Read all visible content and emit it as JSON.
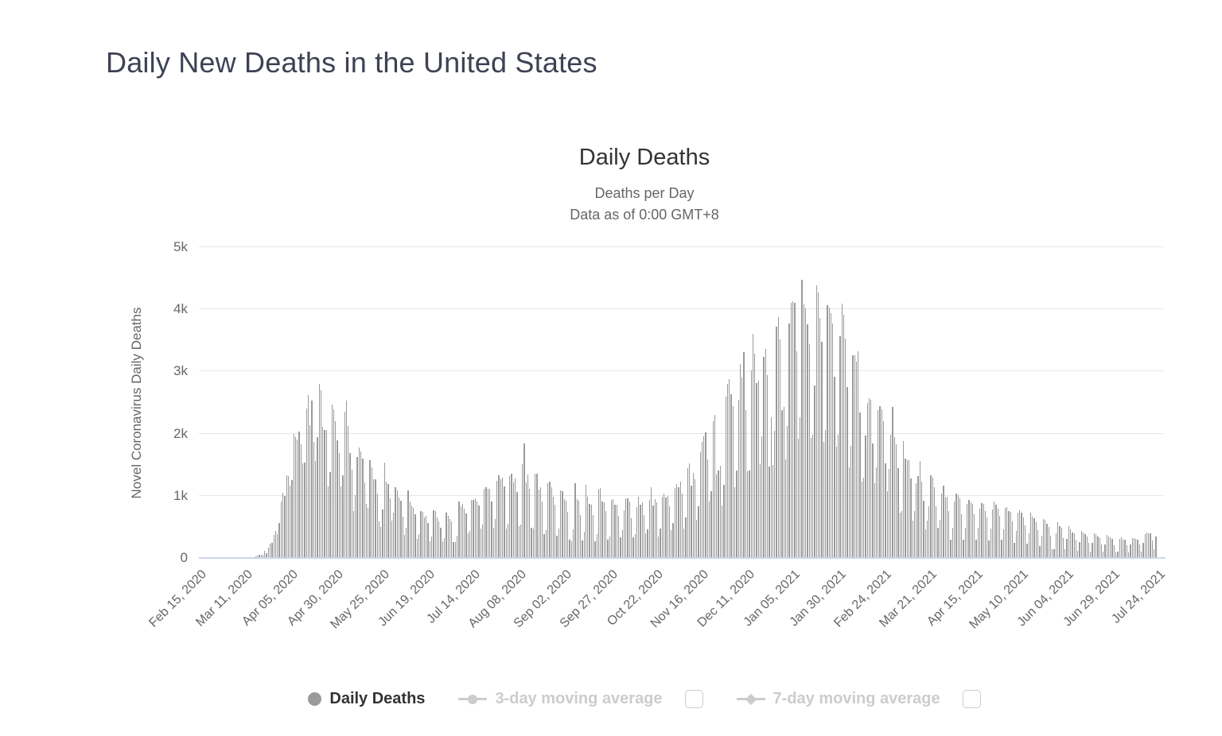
{
  "page": {
    "title": "Daily New Deaths in the United States"
  },
  "chart": {
    "title": "Daily Deaths",
    "subtitle_line1": "Deaths per Day",
    "subtitle_line2": "Data as of 0:00 GMT+8",
    "y_axis_title": "Novel Coronavirus Daily Deaths"
  },
  "legend": {
    "items": [
      {
        "label": "Daily Deaths",
        "marker": "circle",
        "active": true,
        "checkbox": false
      },
      {
        "label": "3-day moving average",
        "marker": "line-circle",
        "active": false,
        "checkbox": true,
        "checked": false
      },
      {
        "label": "7-day moving average",
        "marker": "line-diamond",
        "active": false,
        "checkbox": true,
        "checked": false
      }
    ]
  },
  "colors": {
    "bar": "#9a9a9a",
    "grid": "#e6e6e6",
    "axis_line": "#ccd6eb",
    "title_text": "#333333",
    "subtitle_text": "#666666",
    "axis_text": "#666666",
    "page_title_text": "#3d4254",
    "legend_active_text": "#333333",
    "legend_inactive_text": "#cccccc"
  },
  "chart_data": {
    "type": "bar",
    "title": "Daily Deaths",
    "ylabel": "Novel Coronavirus Daily Deaths",
    "ylim": [
      0,
      5000
    ],
    "y_tick_labels": [
      "0",
      "1k",
      "2k",
      "3k",
      "4k",
      "5k"
    ],
    "grid": true,
    "legend_position": "bottom",
    "x_start_date": "Feb 15, 2020",
    "x_tick_interval_days": 25,
    "x_tick_labels": [
      "Feb 15, 2020",
      "Mar 11, 2020",
      "Apr 05, 2020",
      "Apr 30, 2020",
      "May 25, 2020",
      "Jun 19, 2020",
      "Jul 14, 2020",
      "Aug 08, 2020",
      "Sep 02, 2020",
      "Sep 27, 2020",
      "Oct 22, 2020",
      "Nov 16, 2020",
      "Dec 11, 2020",
      "Jan 05, 2021",
      "Jan 30, 2021",
      "Feb 24, 2021",
      "Mar 21, 2021",
      "Apr 15, 2021",
      "May 10, 2021",
      "Jun 04, 2021",
      "Jun 29, 2021",
      "Jul 24, 2021"
    ],
    "series_name": "Daily Deaths",
    "values": [
      0,
      0,
      0,
      0,
      0,
      0,
      0,
      0,
      0,
      0,
      0,
      0,
      0,
      0,
      1,
      1,
      1,
      4,
      3,
      2,
      3,
      4,
      3,
      4,
      4,
      8,
      3,
      9,
      11,
      11,
      18,
      23,
      41,
      57,
      49,
      46,
      111,
      80,
      164,
      225,
      246,
      372,
      441,
      389,
      558,
      912,
      1050,
      1000,
      1325,
      1320,
      1165,
      1255,
      2000,
      1940,
      1900,
      2035,
      1830,
      1528,
      1535,
      2407,
      2621,
      2137,
      2535,
      1867,
      1561,
      1939,
      2804,
      2693,
      2107,
      2065,
      2065,
      1157,
      1384,
      2470,
      2390,
      2201,
      1897,
      1691,
      1154,
      1324,
      2350,
      2528,
      2129,
      1687,
      1422,
      750,
      1008,
      1630,
      1772,
      1715,
      1595,
      1218,
      865,
      808,
      1568,
      1461,
      1263,
      1260,
      1031,
      592,
      505,
      774,
      1535,
      1223,
      1193,
      960,
      605,
      730,
      1134,
      1083,
      974,
      921,
      670,
      373,
      491,
      1093,
      906,
      841,
      802,
      701,
      301,
      389,
      751,
      737,
      651,
      672,
      562,
      267,
      349,
      771,
      755,
      651,
      590,
      491,
      271,
      316,
      724,
      684,
      624,
      588,
      254,
      262,
      352,
      905,
      828,
      868,
      798,
      714,
      401,
      437,
      935,
      940,
      960,
      910,
      843,
      474,
      541,
      1113,
      1135,
      1108,
      1117,
      908,
      483,
      633,
      1240,
      1331,
      1267,
      1297,
      1149,
      474,
      546,
      1315,
      1362,
      1216,
      1273,
      1059,
      514,
      541,
      1504,
      1848,
      1221,
      1337,
      1113,
      482,
      477,
      1358,
      1356,
      1094,
      1135,
      912,
      390,
      444,
      1205,
      1232,
      1132,
      983,
      860,
      363,
      474,
      1083,
      1077,
      945,
      924,
      743,
      298,
      271,
      460,
      1197,
      942,
      917,
      695,
      283,
      426,
      1175,
      980,
      870,
      852,
      691,
      264,
      390,
      1101,
      1130,
      907,
      891,
      750,
      300,
      344,
      932,
      942,
      857,
      851,
      684,
      327,
      445,
      766,
      957,
      961,
      906,
      642,
      327,
      389,
      817,
      989,
      858,
      900,
      686,
      391,
      464,
      931,
      1135,
      840,
      946,
      897,
      340,
      477,
      986,
      1030,
      971,
      1004,
      827,
      445,
      565,
      1130,
      1187,
      1144,
      1223,
      1033,
      474,
      656,
      1440,
      1520,
      1165,
      1370,
      1269,
      616,
      833,
      1698,
      1869,
      1962,
      2015,
      1590,
      908,
      1072,
      2205,
      2304,
      1339,
      1404,
      1483,
      839,
      1172,
      2597,
      2804,
      2879,
      2637,
      2445,
      1138,
      1404,
      2546,
      3124,
      2902,
      3309,
      2378,
      1389,
      1404,
      3019,
      3611,
      3293,
      2814,
      2855,
      1514,
      1962,
      3239,
      3359,
      2942,
      1468,
      2263,
      1499,
      2045,
      3725,
      3880,
      3516,
      2374,
      2430,
      1585,
      2117,
      3775,
      4111,
      4134,
      4109,
      3330,
      1920,
      2263,
      4470,
      4078,
      4016,
      3764,
      3441,
      1932,
      1982,
      2776,
      4383,
      4266,
      3868,
      3482,
      1870,
      2063,
      4072,
      4031,
      3938,
      3775,
      2916,
      1791,
      1976,
      3566,
      4086,
      3912,
      3529,
      2748,
      1461,
      1806,
      3260,
      3267,
      3157,
      3326,
      2345,
      1227,
      1288,
      1965,
      2499,
      2571,
      2547,
      1836,
      1201,
      1454,
      2378,
      2443,
      2387,
      2195,
      1520,
      1077,
      1428,
      1981,
      2427,
      1947,
      1834,
      1450,
      731,
      757,
      1882,
      1593,
      1567,
      1572,
      1279,
      601,
      751,
      1199,
      1316,
      1566,
      1222,
      920,
      461,
      600,
      827,
      1329,
      1295,
      1144,
      829,
      481,
      619,
      1034,
      1169,
      968,
      990,
      757,
      298,
      486,
      906,
      1038,
      1012,
      953,
      703,
      290,
      481,
      868,
      935,
      899,
      871,
      702,
      300,
      489,
      797,
      883,
      871,
      760,
      647,
      287,
      472,
      778,
      904,
      852,
      793,
      677,
      296,
      461,
      810,
      820,
      761,
      745,
      593,
      246,
      430,
      734,
      769,
      723,
      654,
      529,
      226,
      397,
      723,
      664,
      634,
      576,
      447,
      188,
      358,
      626,
      615,
      550,
      505,
      363,
      147,
      142,
      401,
      579,
      518,
      487,
      323,
      137,
      313,
      508,
      457,
      414,
      393,
      292,
      119,
      260,
      437,
      413,
      384,
      349,
      247,
      105,
      240,
      398,
      380,
      349,
      322,
      219,
      99,
      215,
      368,
      345,
      331,
      304,
      200,
      87,
      102,
      304,
      330,
      299,
      289,
      201,
      89,
      214,
      325,
      324,
      313,
      295,
      213,
      100,
      245,
      388,
      410,
      393,
      397,
      287,
      135,
      344
    ]
  }
}
